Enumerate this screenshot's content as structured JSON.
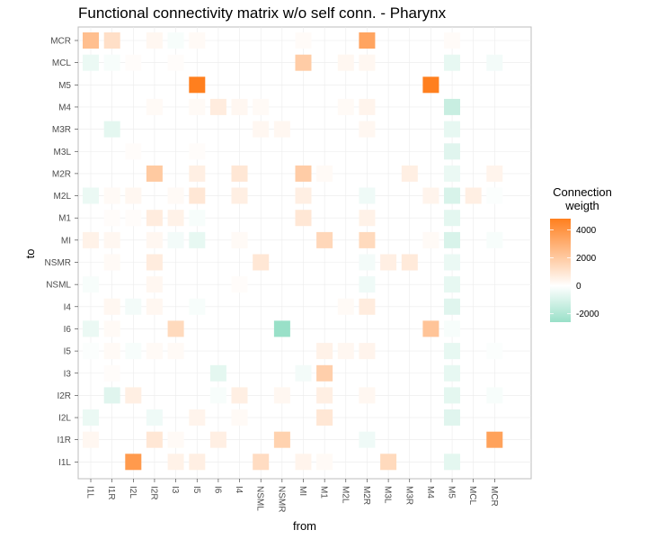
{
  "chart_data": {
    "type": "heatmap",
    "title": "Functional connectivity matrix w/o self conn. - Pharynx",
    "xlabel": "from",
    "ylabel": "to",
    "x": [
      "I1L",
      "I1R",
      "I2L",
      "I2R",
      "I3",
      "I5",
      "I6",
      "I4",
      "NSML",
      "NSMR",
      "MI",
      "M1",
      "M2L",
      "M2R",
      "M3L",
      "M3R",
      "M4",
      "M5",
      "MCL",
      "MCR"
    ],
    "y": [
      "MCR",
      "MCL",
      "M5",
      "M4",
      "M3R",
      "M3L",
      "M2R",
      "M2L",
      "M1",
      "MI",
      "NSMR",
      "NSML",
      "I4",
      "I6",
      "I5",
      "I3",
      "I2R",
      "I2L",
      "I1R",
      "I1L"
    ],
    "cells": [
      {
        "x": "I1L",
        "y": "MCR",
        "v": 2400
      },
      {
        "x": "I1R",
        "y": "MCR",
        "v": 1200
      },
      {
        "x": "I2R",
        "y": "MCR",
        "v": 300
      },
      {
        "x": "I3",
        "y": "MCR",
        "v": -200
      },
      {
        "x": "I5",
        "y": "MCR",
        "v": 200
      },
      {
        "x": "MI",
        "y": "MCR",
        "v": 150
      },
      {
        "x": "M2R",
        "y": "MCR",
        "v": 3400
      },
      {
        "x": "M5",
        "y": "MCR",
        "v": 150
      },
      {
        "x": "I1L",
        "y": "MCL",
        "v": -500
      },
      {
        "x": "I1R",
        "y": "MCL",
        "v": -200
      },
      {
        "x": "I2L",
        "y": "MCL",
        "v": 100
      },
      {
        "x": "I3",
        "y": "MCL",
        "v": 100
      },
      {
        "x": "MI",
        "y": "MCL",
        "v": 1900
      },
      {
        "x": "M2L",
        "y": "MCL",
        "v": 300
      },
      {
        "x": "M2R",
        "y": "MCL",
        "v": 300
      },
      {
        "x": "M5",
        "y": "MCL",
        "v": -600
      },
      {
        "x": "MCR",
        "y": "MCL",
        "v": -300
      },
      {
        "x": "I5",
        "y": "M5",
        "v": 4800
      },
      {
        "x": "M4",
        "y": "M5",
        "v": 4800
      },
      {
        "x": "I2R",
        "y": "M4",
        "v": 200
      },
      {
        "x": "I5",
        "y": "M4",
        "v": 200
      },
      {
        "x": "I6",
        "y": "M4",
        "v": 700
      },
      {
        "x": "I4",
        "y": "M4",
        "v": 300
      },
      {
        "x": "NSML",
        "y": "M4",
        "v": 200
      },
      {
        "x": "M2L",
        "y": "M4",
        "v": 200
      },
      {
        "x": "M2R",
        "y": "M4",
        "v": 400
      },
      {
        "x": "M5",
        "y": "M4",
        "v": -1400
      },
      {
        "x": "I1R",
        "y": "M3R",
        "v": -700
      },
      {
        "x": "NSML",
        "y": "M3R",
        "v": 300
      },
      {
        "x": "NSMR",
        "y": "M3R",
        "v": 300
      },
      {
        "x": "M2R",
        "y": "M3R",
        "v": 300
      },
      {
        "x": "M5",
        "y": "M3R",
        "v": -600
      },
      {
        "x": "I2L",
        "y": "M3L",
        "v": 100
      },
      {
        "x": "I5",
        "y": "M3L",
        "v": 100
      },
      {
        "x": "M5",
        "y": "M3L",
        "v": -800
      },
      {
        "x": "I2R",
        "y": "M2R",
        "v": 2000
      },
      {
        "x": "I5",
        "y": "M2R",
        "v": 600
      },
      {
        "x": "I4",
        "y": "M2R",
        "v": 900
      },
      {
        "x": "MI",
        "y": "M2R",
        "v": 1900
      },
      {
        "x": "M1",
        "y": "M2R",
        "v": 200
      },
      {
        "x": "M3R",
        "y": "M2R",
        "v": 600
      },
      {
        "x": "M5",
        "y": "M2R",
        "v": -500
      },
      {
        "x": "MCR",
        "y": "M2R",
        "v": 400
      },
      {
        "x": "I1L",
        "y": "M2L",
        "v": -500
      },
      {
        "x": "I1R",
        "y": "M2L",
        "v": 200
      },
      {
        "x": "I2L",
        "y": "M2L",
        "v": 300
      },
      {
        "x": "I3",
        "y": "M2L",
        "v": 200
      },
      {
        "x": "I5",
        "y": "M2L",
        "v": 900
      },
      {
        "x": "I4",
        "y": "M2L",
        "v": 600
      },
      {
        "x": "MI",
        "y": "M2L",
        "v": 600
      },
      {
        "x": "M2R",
        "y": "M2L",
        "v": -400
      },
      {
        "x": "M4",
        "y": "M2L",
        "v": 400
      },
      {
        "x": "M5",
        "y": "M2L",
        "v": -1000
      },
      {
        "x": "MCL",
        "y": "M2L",
        "v": 600
      },
      {
        "x": "MCR",
        "y": "M2L",
        "v": -100
      },
      {
        "x": "I1R",
        "y": "M1",
        "v": 100
      },
      {
        "x": "I2L",
        "y": "M1",
        "v": 100
      },
      {
        "x": "I2R",
        "y": "M1",
        "v": 700
      },
      {
        "x": "I3",
        "y": "M1",
        "v": 500
      },
      {
        "x": "I5",
        "y": "M1",
        "v": -200
      },
      {
        "x": "MI",
        "y": "M1",
        "v": 900
      },
      {
        "x": "M2R",
        "y": "M1",
        "v": 500
      },
      {
        "x": "M5",
        "y": "M1",
        "v": -700
      },
      {
        "x": "I1L",
        "y": "MI",
        "v": 500
      },
      {
        "x": "I1R",
        "y": "MI",
        "v": 300
      },
      {
        "x": "I2R",
        "y": "MI",
        "v": 300
      },
      {
        "x": "I3",
        "y": "MI",
        "v": -300
      },
      {
        "x": "I5",
        "y": "MI",
        "v": -600
      },
      {
        "x": "I4",
        "y": "MI",
        "v": 200
      },
      {
        "x": "M1",
        "y": "MI",
        "v": 1500
      },
      {
        "x": "M2R",
        "y": "MI",
        "v": 1400
      },
      {
        "x": "M4",
        "y": "MI",
        "v": 200
      },
      {
        "x": "M5",
        "y": "MI",
        "v": -1000
      },
      {
        "x": "MCR",
        "y": "MI",
        "v": -200
      },
      {
        "x": "I1R",
        "y": "NSMR",
        "v": 200
      },
      {
        "x": "I2R",
        "y": "NSMR",
        "v": 700
      },
      {
        "x": "NSML",
        "y": "NSMR",
        "v": 900
      },
      {
        "x": "M2R",
        "y": "NSMR",
        "v": -300
      },
      {
        "x": "M3L",
        "y": "NSMR",
        "v": 600
      },
      {
        "x": "M3R",
        "y": "NSMR",
        "v": 800
      },
      {
        "x": "M5",
        "y": "NSMR",
        "v": -500
      },
      {
        "x": "I1L",
        "y": "NSML",
        "v": -200
      },
      {
        "x": "I2R",
        "y": "NSML",
        "v": 300
      },
      {
        "x": "I4",
        "y": "NSML",
        "v": 100
      },
      {
        "x": "M2R",
        "y": "NSML",
        "v": -400
      },
      {
        "x": "M5",
        "y": "NSML",
        "v": -600
      },
      {
        "x": "I1R",
        "y": "I4",
        "v": 300
      },
      {
        "x": "I2L",
        "y": "I4",
        "v": -300
      },
      {
        "x": "I2R",
        "y": "I4",
        "v": 300
      },
      {
        "x": "I5",
        "y": "I4",
        "v": -200
      },
      {
        "x": "M2L",
        "y": "I4",
        "v": 200
      },
      {
        "x": "M2R",
        "y": "I4",
        "v": 700
      },
      {
        "x": "M5",
        "y": "I4",
        "v": -800
      },
      {
        "x": "I1L",
        "y": "I6",
        "v": -500
      },
      {
        "x": "I1R",
        "y": "I6",
        "v": 200
      },
      {
        "x": "I3",
        "y": "I6",
        "v": 1400
      },
      {
        "x": "NSMR",
        "y": "I6",
        "v": -2600
      },
      {
        "x": "M4",
        "y": "I6",
        "v": 2200
      },
      {
        "x": "M5",
        "y": "I6",
        "v": -200
      },
      {
        "x": "I1L",
        "y": "I5",
        "v": -100
      },
      {
        "x": "I1R",
        "y": "I5",
        "v": 200
      },
      {
        "x": "I2L",
        "y": "I5",
        "v": -200
      },
      {
        "x": "I2R",
        "y": "I5",
        "v": 200
      },
      {
        "x": "I3",
        "y": "I5",
        "v": 200
      },
      {
        "x": "M1",
        "y": "I5",
        "v": 500
      },
      {
        "x": "M2L",
        "y": "I5",
        "v": 300
      },
      {
        "x": "M2R",
        "y": "I5",
        "v": 400
      },
      {
        "x": "M5",
        "y": "I5",
        "v": -600
      },
      {
        "x": "MCR",
        "y": "I5",
        "v": -100
      },
      {
        "x": "I1R",
        "y": "I3",
        "v": 100
      },
      {
        "x": "I6",
        "y": "I3",
        "v": -700
      },
      {
        "x": "MI",
        "y": "I3",
        "v": -300
      },
      {
        "x": "M1",
        "y": "I3",
        "v": 1800
      },
      {
        "x": "M5",
        "y": "I3",
        "v": -600
      },
      {
        "x": "I1R",
        "y": "I2R",
        "v": -800
      },
      {
        "x": "I2L",
        "y": "I2R",
        "v": 600
      },
      {
        "x": "I6",
        "y": "I2R",
        "v": -200
      },
      {
        "x": "I4",
        "y": "I2R",
        "v": 600
      },
      {
        "x": "NSMR",
        "y": "I2R",
        "v": 300
      },
      {
        "x": "M1",
        "y": "I2R",
        "v": 600
      },
      {
        "x": "M2R",
        "y": "I2R",
        "v": 300
      },
      {
        "x": "M5",
        "y": "I2R",
        "v": -700
      },
      {
        "x": "MCR",
        "y": "I2R",
        "v": -200
      },
      {
        "x": "I1L",
        "y": "I2L",
        "v": -500
      },
      {
        "x": "I2R",
        "y": "I2L",
        "v": -400
      },
      {
        "x": "I5",
        "y": "I2L",
        "v": 400
      },
      {
        "x": "I4",
        "y": "I2L",
        "v": 200
      },
      {
        "x": "M1",
        "y": "I2L",
        "v": 900
      },
      {
        "x": "M5",
        "y": "I2L",
        "v": -800
      },
      {
        "x": "I1L",
        "y": "I1R",
        "v": 300
      },
      {
        "x": "I2R",
        "y": "I1R",
        "v": 900
      },
      {
        "x": "I3",
        "y": "I1R",
        "v": 200
      },
      {
        "x": "I6",
        "y": "I1R",
        "v": 600
      },
      {
        "x": "NSMR",
        "y": "I1R",
        "v": 1700
      },
      {
        "x": "M2R",
        "y": "I1R",
        "v": -400
      },
      {
        "x": "MCR",
        "y": "I1R",
        "v": 3500
      },
      {
        "x": "I2L",
        "y": "I1L",
        "v": 3800
      },
      {
        "x": "I3",
        "y": "I1L",
        "v": 500
      },
      {
        "x": "I5",
        "y": "I1L",
        "v": 600
      },
      {
        "x": "NSML",
        "y": "I1L",
        "v": 1300
      },
      {
        "x": "MI",
        "y": "I1L",
        "v": 400
      },
      {
        "x": "M1",
        "y": "I1L",
        "v": 200
      },
      {
        "x": "M3L",
        "y": "I1L",
        "v": 1400
      },
      {
        "x": "M5",
        "y": "I1L",
        "v": -700
      }
    ],
    "legend": {
      "title": [
        "Connection",
        "weigth"
      ],
      "breaks": [
        4000,
        2000,
        0,
        -2000
      ],
      "labels": [
        "4000",
        "2000",
        "0",
        "-2000"
      ],
      "limits": [
        -2600,
        4800
      ]
    },
    "colors": {
      "low": "#99e0c8",
      "mid": "#ffffff",
      "high": "#ff7f1e"
    },
    "grid": true,
    "legend_position": "right"
  }
}
